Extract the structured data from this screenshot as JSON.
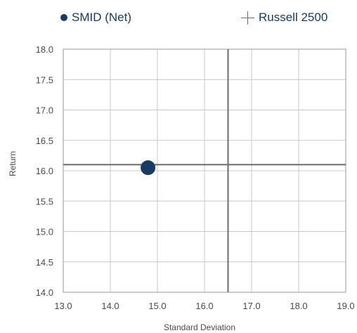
{
  "legend": {
    "smid_label": "SMID (Net)",
    "smid_icon": "filled-circle-icon",
    "r2500_label": "Russell 2500",
    "r2500_icon": "plus-crosshair-icon"
  },
  "chart_data": {
    "type": "scatter",
    "xlabel": "Standard Deviation",
    "ylabel": "Return",
    "xlim": [
      13.0,
      19.0
    ],
    "ylim": [
      14.0,
      18.0
    ],
    "xticks": [
      13.0,
      14.0,
      15.0,
      16.0,
      17.0,
      18.0,
      19.0
    ],
    "yticks": [
      14.0,
      14.5,
      15.0,
      15.5,
      16.0,
      16.5,
      17.0,
      17.5,
      18.0
    ],
    "grid": true,
    "legend_position": "top",
    "series": [
      {
        "name": "SMID (Net)",
        "marker": "circle",
        "color": "#173b63",
        "points": [
          {
            "x": 14.8,
            "y": 16.05
          }
        ]
      },
      {
        "name": "Russell 2500",
        "marker": "crosshair",
        "color": "#6b6b6b",
        "points": [
          {
            "x": 16.5,
            "y": 16.1
          }
        ]
      }
    ]
  }
}
